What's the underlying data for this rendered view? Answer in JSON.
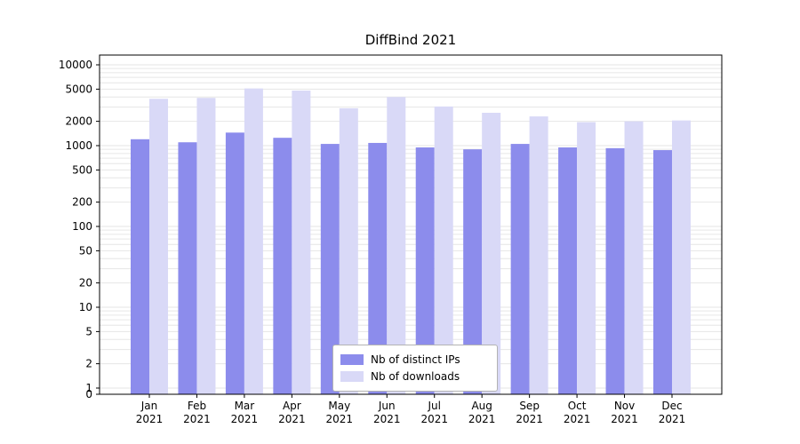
{
  "page": {
    "title": "DiffBind 2021"
  },
  "chart_data": {
    "type": "bar",
    "title": "DiffBind 2021",
    "xlabel": "",
    "ylabel": "",
    "year": "2021",
    "categories": [
      "Jan",
      "Feb",
      "Mar",
      "Apr",
      "May",
      "Jun",
      "Jul",
      "Aug",
      "Sep",
      "Oct",
      "Nov",
      "Dec"
    ],
    "series": [
      {
        "name": "Nb of distinct IPs",
        "color": "#8c8cec",
        "values": [
          1200,
          1100,
          1450,
          1250,
          1050,
          1080,
          950,
          900,
          1050,
          950,
          930,
          880
        ]
      },
      {
        "name": "Nb of downloads",
        "color": "#d9d9f7",
        "values": [
          3800,
          3900,
          5100,
          4800,
          2900,
          4000,
          3050,
          2550,
          2300,
          1950,
          2000,
          2050
        ]
      }
    ],
    "yscale": "symlog",
    "yticks": [
      0,
      1,
      2,
      5,
      10,
      20,
      50,
      100,
      200,
      500,
      1000,
      2000,
      5000,
      10000
    ],
    "ylim": [
      0,
      13000
    ],
    "grid": "horizontal-minor-log",
    "grid_color": "#e6e6e6",
    "legend_position": "bottom-center-inside",
    "axis_color": "#000000"
  }
}
